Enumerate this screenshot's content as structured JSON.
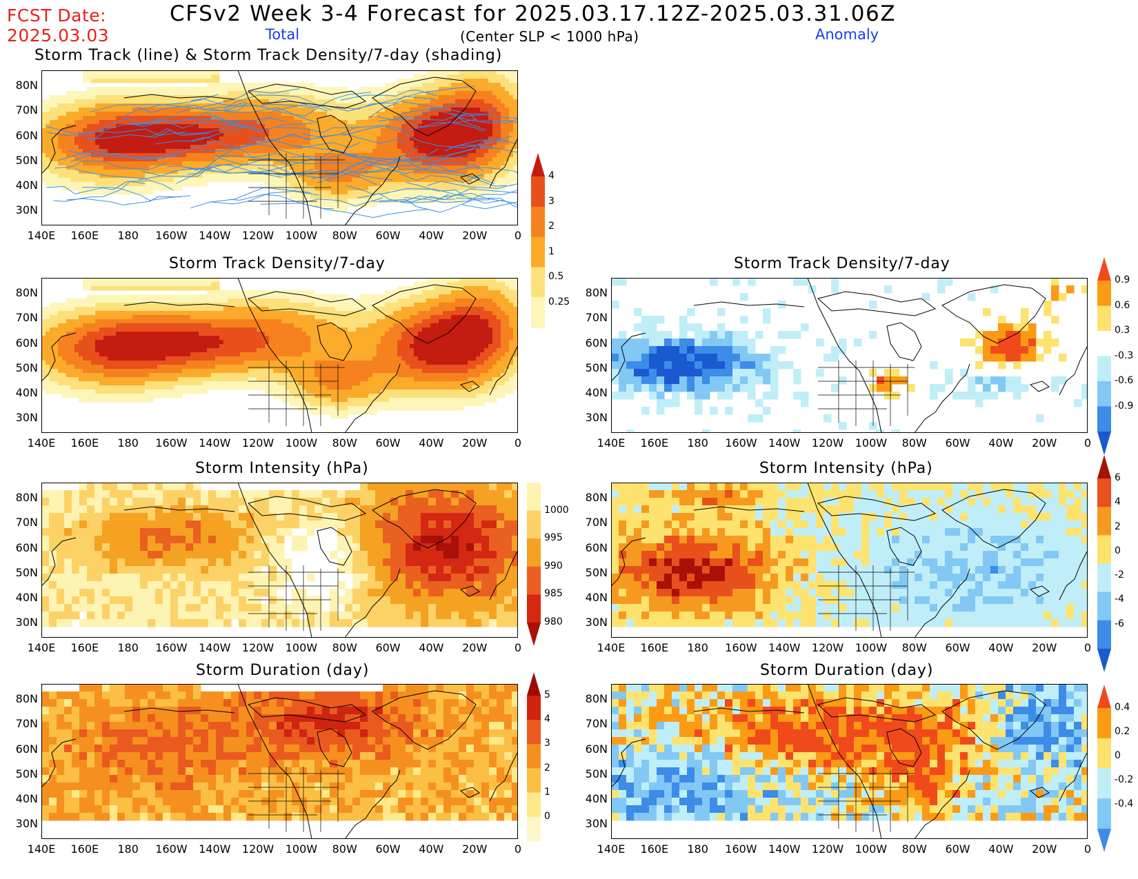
{
  "header": {
    "fcst_label": "FCST Date:",
    "fcst_date": "2025.03.03",
    "title": "CFSv2 Week 3-4 Forecast for 2025.03.17.12Z-2025.03.31.06Z",
    "col_total": "Total",
    "col_anomaly": "Anomaly",
    "subtitle": "(Center SLP < 1000 hPa)"
  },
  "axes": {
    "lat_labels": [
      "80N",
      "70N",
      "60N",
      "50N",
      "40N",
      "30N"
    ],
    "lon_labels": [
      "140E",
      "160E",
      "180",
      "160W",
      "140W",
      "120W",
      "100W",
      "80W",
      "60W",
      "40W",
      "20W",
      "0"
    ]
  },
  "panels": {
    "track_total": {
      "title": "Storm Track (line) & Storm Track Density/7-day (shading)"
    },
    "density_total": {
      "title": "Storm Track Density/7-day"
    },
    "density_anom": {
      "title": "Storm Track Density/7-day"
    },
    "intensity_total": {
      "title": "Storm Intensity (hPa)"
    },
    "intensity_anom": {
      "title": "Storm Intensity (hPa)"
    },
    "duration_total": {
      "title": "Storm Duration (day)"
    },
    "duration_anom": {
      "title": "Storm Duration (day)"
    }
  },
  "colorbars": {
    "density_total": {
      "labels": [
        "4",
        "3",
        "2",
        "1",
        "0.5",
        "0.25"
      ],
      "colors": [
        "#c41c10",
        "#e8501c",
        "#f5821e",
        "#fbaa2a",
        "#fde07a",
        "#fdf6b8"
      ]
    },
    "density_anom": {
      "labels": [
        "0.9",
        "0.6",
        "0.3",
        "-0.3",
        "-0.6",
        "-0.9"
      ],
      "colors": [
        "#f04a1c",
        "#fb9a14",
        "#fde36e",
        "#ffffff",
        "#bfeef8",
        "#82c8f5",
        "#3c8ce8",
        "#1a5ad0"
      ]
    },
    "intensity_total": {
      "labels": [
        "1000",
        "995",
        "990",
        "985",
        "980"
      ],
      "colors": [
        "#fdf3b2",
        "#fcd266",
        "#f5a122",
        "#ea6020",
        "#d42812",
        "#a81008"
      ]
    },
    "intensity_anom": {
      "labels": [
        "6",
        "4",
        "2",
        "0",
        "-2",
        "-4",
        "-6"
      ],
      "colors": [
        "#a81008",
        "#e8501c",
        "#f59a1e",
        "#fde36e",
        "#bfeef8",
        "#82c8f5",
        "#3c8ce8",
        "#1a5ad0"
      ]
    },
    "duration_total": {
      "labels": [
        "5",
        "4",
        "3",
        "2",
        "1",
        "0"
      ],
      "colors": [
        "#9e0c06",
        "#cf2410",
        "#ea5a1e",
        "#f5901e",
        "#fbbf44",
        "#fde98a",
        "#fdf8c8"
      ]
    },
    "duration_anom": {
      "labels": [
        "0.4",
        "0.2",
        "0",
        "-0.2",
        "-0.4"
      ],
      "colors": [
        "#f04a1c",
        "#fb9a14",
        "#fde36e",
        "#bfeef8",
        "#82c8f5",
        "#3c8ce8"
      ]
    }
  },
  "colors": {
    "title_red": "#e8201a",
    "header_blue": "#1a3cf0",
    "track_line": "#3b8fe6",
    "coastline": "#000000"
  }
}
